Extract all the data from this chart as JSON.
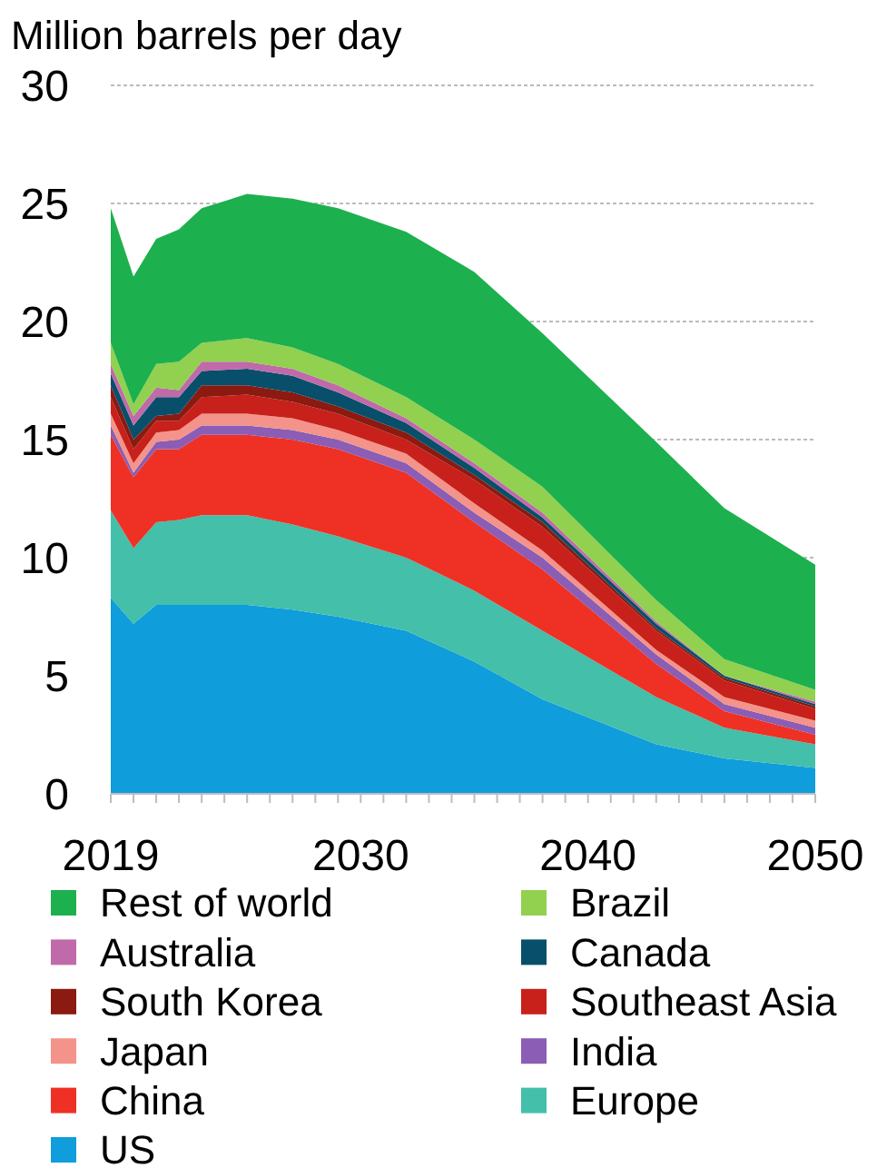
{
  "chart_data": {
    "type": "area",
    "stacked": true,
    "ylabel": "Million barrels per day",
    "x": [
      2019,
      2020,
      2021,
      2022,
      2023,
      2025,
      2027,
      2029,
      2032,
      2035,
      2038,
      2043,
      2046,
      2050
    ],
    "xlim": [
      2019,
      2050
    ],
    "xticks": [
      2019,
      {
        "value": 2020,
        "label": null
      },
      {
        "value": 2021,
        "label": null
      },
      {
        "value": 2022,
        "label": null
      },
      {
        "value": 2023,
        "label": null
      },
      {
        "value": 2024,
        "label": null
      },
      {
        "value": 2025,
        "label": null
      },
      {
        "value": 2026,
        "label": null
      },
      {
        "value": 2027,
        "label": null
      },
      {
        "value": 2028,
        "label": null
      },
      {
        "value": 2029,
        "label": null
      },
      2030,
      {
        "value": 2031,
        "label": null
      },
      {
        "value": 2032,
        "label": null
      },
      {
        "value": 2033,
        "label": null
      },
      {
        "value": 2034,
        "label": null
      },
      {
        "value": 2035,
        "label": null
      },
      {
        "value": 2036,
        "label": null
      },
      {
        "value": 2037,
        "label": null
      },
      {
        "value": 2038,
        "label": null
      },
      {
        "value": 2039,
        "label": null
      },
      2040,
      {
        "value": 2041,
        "label": null
      },
      {
        "value": 2042,
        "label": null
      },
      {
        "value": 2043,
        "label": null
      },
      {
        "value": 2044,
        "label": null
      },
      {
        "value": 2045,
        "label": null
      },
      {
        "value": 2046,
        "label": null
      },
      {
        "value": 2047,
        "label": null
      },
      {
        "value": 2048,
        "label": null
      },
      {
        "value": 2049,
        "label": null
      },
      2050
    ],
    "ylim": [
      0,
      30
    ],
    "yticks": [
      0,
      5,
      10,
      15,
      20,
      25,
      30
    ],
    "grid": "y",
    "legend": "bottom",
    "series": [
      {
        "name": "US",
        "color": "#0f9ddb",
        "values": [
          8.3,
          7.2,
          8.0,
          8.0,
          8.0,
          8.0,
          7.8,
          7.5,
          6.9,
          5.6,
          4.0,
          2.1,
          1.5,
          1.1
        ]
      },
      {
        "name": "Europe",
        "color": "#43bfaa",
        "values": [
          3.7,
          3.2,
          3.5,
          3.6,
          3.8,
          3.8,
          3.6,
          3.4,
          3.1,
          3.0,
          2.9,
          2.0,
          1.3,
          1.0
        ]
      },
      {
        "name": "China",
        "color": "#ee3124",
        "values": [
          3.2,
          3.0,
          3.1,
          3.0,
          3.4,
          3.4,
          3.6,
          3.7,
          3.6,
          2.9,
          2.6,
          1.4,
          0.7,
          0.4
        ]
      },
      {
        "name": "India",
        "color": "#8b5db4",
        "values": [
          0.4,
          0.2,
          0.3,
          0.4,
          0.4,
          0.4,
          0.4,
          0.4,
          0.4,
          0.4,
          0.5,
          0.4,
          0.3,
          0.3
        ]
      },
      {
        "name": "Japan",
        "color": "#f4938a",
        "values": [
          0.5,
          0.4,
          0.4,
          0.4,
          0.5,
          0.5,
          0.5,
          0.4,
          0.4,
          0.4,
          0.3,
          0.2,
          0.3,
          0.3
        ]
      },
      {
        "name": "Southeast Asia",
        "color": "#c8201a",
        "values": [
          0.7,
          0.6,
          0.5,
          0.4,
          0.7,
          0.8,
          0.7,
          0.7,
          0.6,
          1.0,
          1.0,
          0.8,
          0.7,
          0.5
        ]
      },
      {
        "name": "South Korea",
        "color": "#8b1a10",
        "values": [
          0.5,
          0.4,
          0.2,
          0.3,
          0.5,
          0.4,
          0.4,
          0.3,
          0.3,
          0.2,
          0.2,
          0.1,
          0.1,
          0.1
        ]
      },
      {
        "name": "Canada",
        "color": "#074f6a",
        "values": [
          0.5,
          0.6,
          0.8,
          0.7,
          0.6,
          0.7,
          0.7,
          0.6,
          0.4,
          0.3,
          0.2,
          0.2,
          0.1,
          0.1
        ]
      },
      {
        "name": "Australia",
        "color": "#c06aa9",
        "values": [
          0.4,
          0.4,
          0.4,
          0.3,
          0.4,
          0.3,
          0.3,
          0.3,
          0.2,
          0.2,
          0.2,
          0.1,
          0.0,
          0.1
        ]
      },
      {
        "name": "Brazil",
        "color": "#92d050",
        "values": [
          0.9,
          0.5,
          1.0,
          1.2,
          0.8,
          1.0,
          0.9,
          0.9,
          0.9,
          1.0,
          1.1,
          0.9,
          0.7,
          0.5
        ]
      },
      {
        "name": "Rest of world",
        "color": "#1db04e",
        "values": [
          5.7,
          5.4,
          5.3,
          5.6,
          5.7,
          6.1,
          6.3,
          6.6,
          7.0,
          7.1,
          6.5,
          6.7,
          6.4,
          5.3
        ]
      }
    ]
  }
}
